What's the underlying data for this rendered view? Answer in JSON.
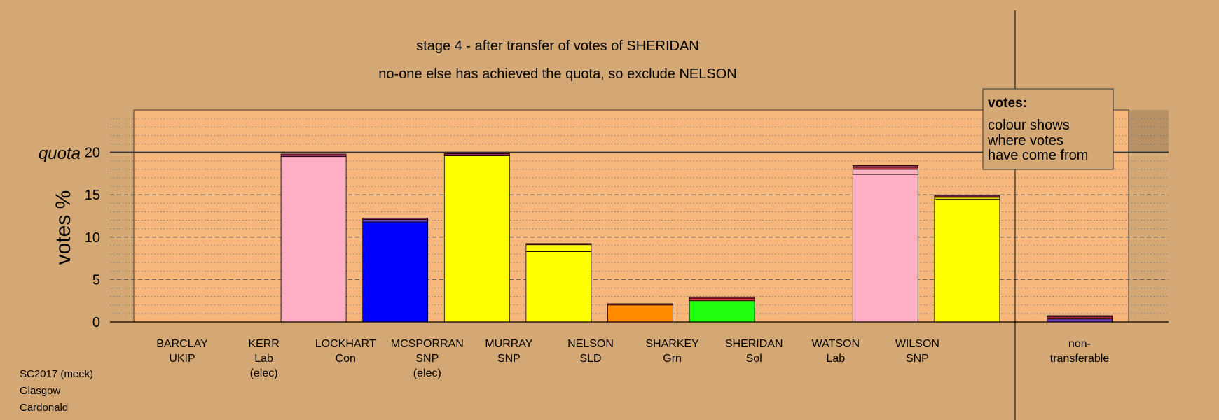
{
  "chart_data": {
    "type": "bar",
    "title": "stage 4 - after transfer of votes of SHERIDAN",
    "subtitle": "no-one else has achieved the quota, so exclude NELSON",
    "ylabel": "votes %",
    "ylim": [
      0,
      25
    ],
    "yticks": [
      0,
      5,
      10,
      15,
      20
    ],
    "quota": 20,
    "quota_label": "quota",
    "categories": [
      {
        "name": "BARCLAY",
        "party": "UKIP",
        "note": ""
      },
      {
        "name": "KERR",
        "party": "Lab",
        "note": "(elec)"
      },
      {
        "name": "LOCKHART",
        "party": "Con",
        "note": ""
      },
      {
        "name": "MCSPORRAN",
        "party": "SNP",
        "note": "(elec)"
      },
      {
        "name": "MURRAY",
        "party": "SNP",
        "note": ""
      },
      {
        "name": "NELSON",
        "party": "SLD",
        "note": ""
      },
      {
        "name": "SHARKEY",
        "party": "Grn",
        "note": ""
      },
      {
        "name": "SHERIDAN",
        "party": "Sol",
        "note": ""
      },
      {
        "name": "WATSON",
        "party": "Lab",
        "note": ""
      },
      {
        "name": "WILSON",
        "party": "SNP",
        "note": ""
      }
    ],
    "bars": [
      {
        "segments": []
      },
      {
        "segments": [
          {
            "value": 19.5,
            "color": "#ffb0c4"
          },
          {
            "value": 0.3,
            "color": "#9c2a5a"
          }
        ]
      },
      {
        "segments": [
          {
            "value": 11.8,
            "color": "#0000ff"
          },
          {
            "value": 0.3,
            "color": "#6a40c0"
          },
          {
            "value": 0.15,
            "color": "#9c2a5a"
          }
        ]
      },
      {
        "segments": [
          {
            "value": 19.6,
            "color": "#ffff00"
          },
          {
            "value": 0.25,
            "color": "#9c2a5a"
          }
        ]
      },
      {
        "segments": [
          {
            "value": 8.3,
            "color": "#ffff00"
          },
          {
            "value": 0.8,
            "color": "#ffff00"
          },
          {
            "value": 0.15,
            "color": "#9c2a5a"
          }
        ]
      },
      {
        "segments": [
          {
            "value": 2.0,
            "color": "#ff8c00"
          },
          {
            "value": 0.15,
            "color": "#9c2a5a"
          }
        ]
      },
      {
        "segments": [
          {
            "value": 2.5,
            "color": "#22ff11"
          },
          {
            "value": 0.3,
            "color": "#d03040"
          },
          {
            "value": 0.15,
            "color": "#9c2a5a"
          }
        ]
      },
      {
        "segments": []
      },
      {
        "segments": [
          {
            "value": 17.4,
            "color": "#ffb0c4"
          },
          {
            "value": 0.6,
            "color": "#ffb0c4"
          },
          {
            "value": 0.25,
            "color": "#d03040"
          },
          {
            "value": 0.2,
            "color": "#9c2a5a"
          }
        ]
      },
      {
        "segments": [
          {
            "value": 14.5,
            "color": "#ffff00"
          },
          {
            "value": 0.2,
            "color": "#ffff00"
          },
          {
            "value": 0.15,
            "color": "#d03040"
          },
          {
            "value": 0.12,
            "color": "#9c2a5a"
          }
        ]
      }
    ],
    "nontransferable": {
      "label_line1": "non-",
      "label_line2": "transferable",
      "segments": [
        {
          "value": 0.35,
          "color": "#6a40c0"
        },
        {
          "value": 0.25,
          "color": "#d03040"
        },
        {
          "value": 0.15,
          "color": "#9c2a5a"
        }
      ]
    },
    "legend": {
      "title": "votes:",
      "lines": [
        "colour shows",
        "where votes",
        "have come from"
      ],
      "placement": "top-right"
    },
    "colors": {
      "background": "#d4a874",
      "plot_area": "#f5b77c"
    }
  },
  "footer": {
    "line1": "SC2017 (meek)",
    "line2": "Glasgow",
    "line3": "Cardonald"
  }
}
